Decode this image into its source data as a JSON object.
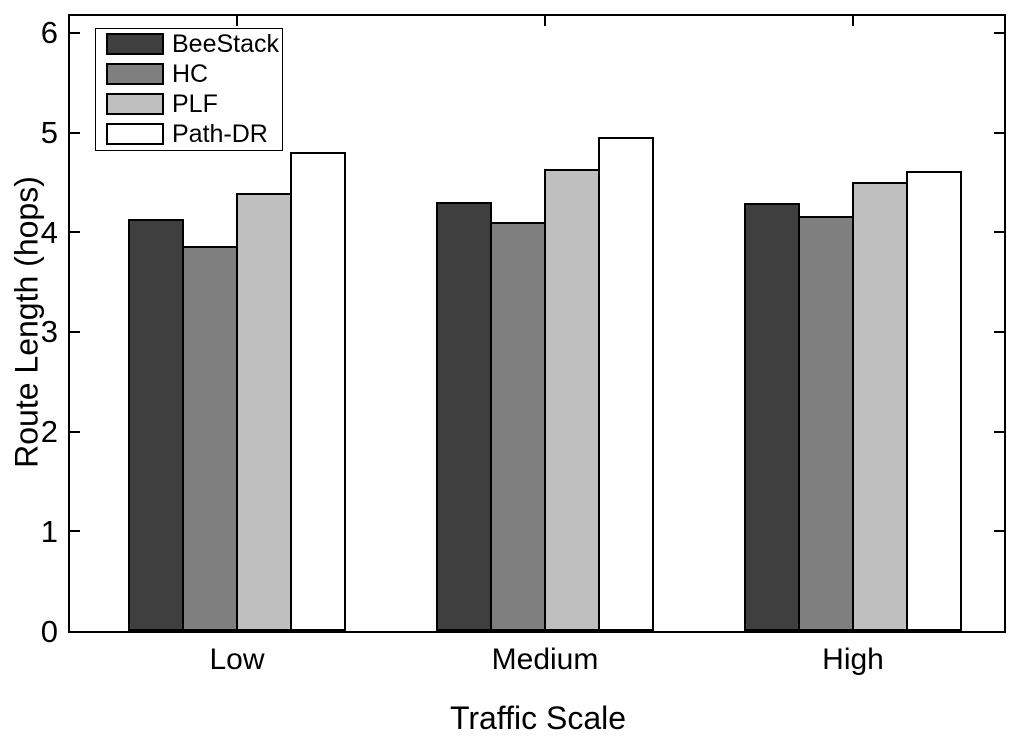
{
  "figure": {
    "background_color": "#ffffff",
    "axis_color": "#000000",
    "text_color": "#000000"
  },
  "chart_data": {
    "type": "bar",
    "title": "",
    "xlabel": "Traffic Scale",
    "ylabel": "Route Length (hops)",
    "categories": [
      "Low",
      "Medium",
      "High"
    ],
    "series": [
      {
        "name": "BeeStack",
        "color": "#3f3f3f",
        "values": [
          4.13,
          4.3,
          4.29
        ]
      },
      {
        "name": "HC",
        "color": "#7f7f7f",
        "values": [
          3.86,
          4.1,
          4.16
        ]
      },
      {
        "name": "PLF",
        "color": "#bfbfbf",
        "values": [
          4.39,
          4.64,
          4.5
        ]
      },
      {
        "name": "Path-DR",
        "color": "#ffffff",
        "values": [
          4.81,
          4.96,
          4.61
        ]
      }
    ],
    "y_ticks": [
      0,
      1,
      2,
      3,
      4,
      5,
      6
    ],
    "ylim": [
      0,
      6.17
    ],
    "bar_edge_color": "#000000",
    "legend_position": "top-left",
    "legend_entries": [
      "BeeStack",
      "HC",
      "PLF",
      "Path-DR"
    ],
    "grid": false
  }
}
